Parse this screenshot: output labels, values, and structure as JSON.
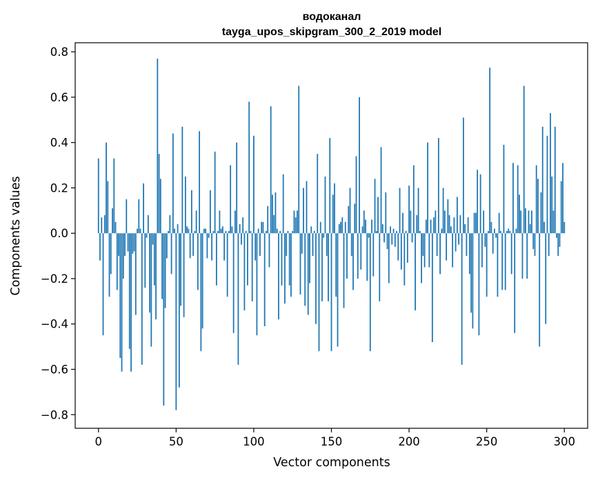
{
  "chart_data": {
    "type": "bar",
    "title": "водоканал",
    "subtitle": "tayga_upos_skipgram_300_2_2019 model",
    "xlabel": "Vector components",
    "ylabel": "Components values",
    "xlim": [
      -15,
      315
    ],
    "ylim": [
      -0.86,
      0.84
    ],
    "xticks": [
      0,
      50,
      100,
      150,
      200,
      250,
      300
    ],
    "xtick_labels": [
      "0",
      "50",
      "100",
      "150",
      "200",
      "250",
      "300"
    ],
    "yticks": [
      -0.8,
      -0.6,
      -0.4,
      -0.2,
      0.0,
      0.2,
      0.4,
      0.6,
      0.8
    ],
    "ytick_labels": [
      "−0.8",
      "−0.6",
      "−0.4",
      "−0.2",
      "0.0",
      "0.2",
      "0.4",
      "0.6",
      "0.8"
    ],
    "bar_color": "#1f77b4",
    "grid": false,
    "values": [
      0.33,
      -0.12,
      0.07,
      -0.45,
      0.08,
      0.4,
      0.23,
      -0.28,
      -0.18,
      0.11,
      0.33,
      0.05,
      -0.25,
      -0.1,
      -0.55,
      -0.61,
      -0.2,
      -0.1,
      0.15,
      -0.08,
      -0.51,
      -0.61,
      -0.09,
      -0.08,
      -0.36,
      0.02,
      0.15,
      0.02,
      -0.58,
      0.22,
      -0.24,
      -0.02,
      0.08,
      -0.35,
      -0.5,
      -0.05,
      -0.23,
      -0.38,
      0.77,
      0.35,
      0.24,
      -0.29,
      -0.76,
      -0.33,
      -0.11,
      0.01,
      0.08,
      -0.18,
      0.44,
      0.02,
      -0.78,
      0.04,
      -0.68,
      -0.32,
      0.47,
      -0.37,
      0.25,
      0.03,
      0.02,
      -0.11,
      0.19,
      -0.1,
      0.01,
      0.1,
      -0.25,
      0.45,
      -0.52,
      -0.42,
      0.02,
      0.02,
      -0.11,
      -0.02,
      0.19,
      -0.12,
      0.01,
      0.36,
      -0.23,
      0.01,
      0.1,
      0.02,
      0.03,
      -0.12,
      0.01,
      -0.28,
      0.01,
      0.3,
      0.03,
      -0.44,
      0.1,
      0.4,
      -0.58,
      0.04,
      -0.05,
      0.07,
      -0.34,
      0.01,
      -0.23,
      0.58,
      0.01,
      -0.3,
      0.43,
      -0.12,
      -0.45,
      0.02,
      -0.1,
      0.05,
      0.05,
      -0.41,
      0.01,
      0.12,
      -0.15,
      0.56,
      0.17,
      0.08,
      0.18,
      0.02,
      -0.38,
      0.01,
      -0.23,
      0.26,
      -0.31,
      -0.1,
      0.01,
      -0.23,
      -0.28,
      0.01,
      0.1,
      0.07,
      0.1,
      0.65,
      -0.27,
      -0.09,
      0.2,
      -0.32,
      0.23,
      -0.36,
      -0.22,
      0.03,
      -0.1,
      0.01,
      -0.4,
      0.35,
      -0.52,
      0.05,
      -0.3,
      -0.02,
      0.25,
      -0.1,
      -0.3,
      0.42,
      -0.52,
      0.17,
      0.22,
      -0.28,
      -0.5,
      0.04,
      0.05,
      0.07,
      -0.33,
      0.05,
      -0.2,
      0.12,
      0.2,
      -0.1,
      -0.25,
      0.13,
      0.34,
      -0.2,
      0.6,
      -0.16,
      0.03,
      0.1,
      0.06,
      -0.21,
      -0.02,
      -0.52,
      0.06,
      -0.19,
      0.24,
      0.01,
      0.16,
      -0.3,
      0.38,
      0.04,
      -0.04,
      0.18,
      -0.07,
      -0.22,
      0.03,
      -0.05,
      0.02,
      -0.06,
      0.01,
      -0.12,
      0.2,
      -0.16,
      0.09,
      -0.23,
      0.01,
      -0.13,
      0.21,
      0.1,
      -0.04,
      0.3,
      -0.34,
      0.08,
      0.2,
      0.01,
      -0.22,
      -0.1,
      -0.15,
      0.06,
      0.4,
      -0.15,
      0.06,
      -0.48,
      0.07,
      0.1,
      -0.1,
      0.42,
      -0.18,
      0.02,
      0.2,
      0.1,
      -0.12,
      0.15,
      0.08,
      0.03,
      -0.15,
      0.07,
      -0.08,
      0.16,
      -0.05,
      0.08,
      -0.58,
      0.51,
      0.04,
      -0.1,
      0.07,
      -0.18,
      -0.35,
      -0.42,
      0.09,
      0.09,
      0.28,
      -0.45,
      0.26,
      -0.15,
      0.1,
      -0.06,
      -0.28,
      0.01,
      0.73,
      0.05,
      -0.09,
      0.02,
      -0.02,
      -0.28,
      0.09,
      0.01,
      -0.25,
      0.39,
      -0.25,
      0.01,
      0.02,
      0.01,
      -0.18,
      0.31,
      -0.44,
      0.02,
      0.3,
      0.17,
      0.1,
      -0.2,
      0.65,
      0.11,
      -0.2,
      0.1,
      0.04,
      0.1,
      -0.07,
      -0.1,
      0.3,
      0.24,
      -0.5,
      0.18,
      0.47,
      0.05,
      -0.4,
      0.43,
      -0.1,
      0.53,
      0.25,
      0.1,
      0.47,
      -0.02,
      -0.1,
      -0.06,
      0.23,
      0.31,
      0.05
    ]
  }
}
